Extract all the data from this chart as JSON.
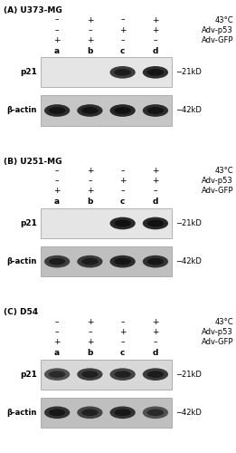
{
  "panels": [
    {
      "label": "(A) U373-MG",
      "rows": {
        "temp": [
          "–",
          "+",
          "–",
          "+"
        ],
        "p53": [
          "–",
          "–",
          "+",
          "+"
        ],
        "gfp": [
          "+",
          "+",
          "–",
          "–"
        ]
      },
      "cols": [
        "a",
        "b",
        "c",
        "d"
      ],
      "p21_bands": [
        0.04,
        0.04,
        0.82,
        0.88
      ],
      "actin_bands": [
        0.88,
        0.88,
        0.9,
        0.88
      ],
      "p21_bg": 0.9,
      "actin_bg": 0.78
    },
    {
      "label": "(B) U251-MG",
      "rows": {
        "temp": [
          "–",
          "+",
          "–",
          "+"
        ],
        "p53": [
          "–",
          "–",
          "+",
          "+"
        ],
        "gfp": [
          "+",
          "+",
          "–",
          "–"
        ]
      },
      "cols": [
        "a",
        "b",
        "c",
        "d"
      ],
      "p21_bands": [
        0.04,
        0.04,
        0.9,
        0.9
      ],
      "actin_bands": [
        0.8,
        0.82,
        0.88,
        0.85
      ],
      "p21_bg": 0.9,
      "actin_bg": 0.75
    },
    {
      "label": "(C) D54",
      "rows": {
        "temp": [
          "–",
          "+",
          "–",
          "+"
        ],
        "p53": [
          "–",
          "–",
          "+",
          "+"
        ],
        "gfp": [
          "+",
          "+",
          "–",
          "–"
        ]
      },
      "cols": [
        "a",
        "b",
        "c",
        "d"
      ],
      "p21_bands": [
        0.72,
        0.8,
        0.78,
        0.82
      ],
      "actin_bands": [
        0.85,
        0.78,
        0.85,
        0.72
      ],
      "p21_bg": 0.85,
      "actin_bg": 0.75
    }
  ],
  "row_labels": [
    "43°C",
    "Adv-p53",
    "Adv-GFP"
  ],
  "band_label_p21": "p21",
  "band_label_actin": "β-actin",
  "size_label_21": "−21kD",
  "size_label_42": "−42kD",
  "bg_color": "#ffffff"
}
